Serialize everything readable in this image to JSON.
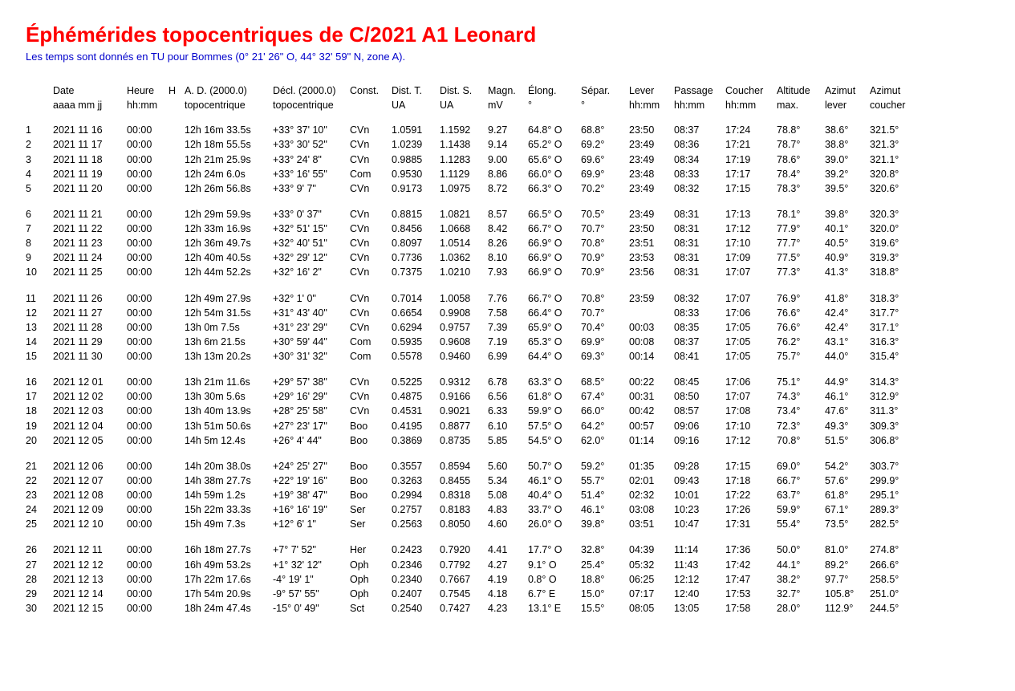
{
  "title": "Éphémérides topocentriques de C/2021 A1 Leonard",
  "subtitle": "Les temps sont donnés en TU pour Bommes (0° 21' 26\" O, 44° 32' 59\" N, zone A).",
  "colors": {
    "title": "#ff0000",
    "subtitle": "#0000cc",
    "text": "#000000",
    "background": "#ffffff"
  },
  "font": {
    "family": "Arial",
    "title_size": 26,
    "body_size": 12.5
  },
  "headers": {
    "line1": [
      "",
      "Date",
      "Heure",
      "H",
      "A. D. (2000.0)",
      "Décl. (2000.0)",
      "Const.",
      "Dist. T.",
      "Dist. S.",
      "Magn.",
      "Élong.",
      "Sépar.",
      "Lever",
      "Passage",
      "Coucher",
      "Altitude",
      "Azimut",
      "Azimut"
    ],
    "line2": [
      "",
      "aaaa mm jj",
      "hh:mm",
      "",
      "topocentrique",
      "topocentrique",
      "",
      "UA",
      "UA",
      "mV",
      "°",
      "°",
      "hh:mm",
      "hh:mm",
      "hh:mm",
      "max.",
      "lever",
      "coucher"
    ]
  },
  "rows": [
    [
      "1",
      "2021 11 16",
      "00:00",
      "",
      "12h 16m 33.5s",
      "+33° 37' 10\"",
      "CVn",
      "1.0591",
      "1.1592",
      "9.27",
      "64.8° O",
      "68.8°",
      "23:50",
      "08:37",
      "17:24",
      "78.8°",
      "38.6°",
      "321.5°"
    ],
    [
      "2",
      "2021 11 17",
      "00:00",
      "",
      "12h 18m 55.5s",
      "+33° 30' 52\"",
      "CVn",
      "1.0239",
      "1.1438",
      "9.14",
      "65.2° O",
      "69.2°",
      "23:49",
      "08:36",
      "17:21",
      "78.7°",
      "38.8°",
      "321.3°"
    ],
    [
      "3",
      "2021 11 18",
      "00:00",
      "",
      "12h 21m 25.9s",
      "+33° 24' 8\"",
      "CVn",
      "0.9885",
      "1.1283",
      "9.00",
      "65.6° O",
      "69.6°",
      "23:49",
      "08:34",
      "17:19",
      "78.6°",
      "39.0°",
      "321.1°"
    ],
    [
      "4",
      "2021 11 19",
      "00:00",
      "",
      "12h 24m 6.0s",
      "+33° 16' 55\"",
      "Com",
      "0.9530",
      "1.1129",
      "8.86",
      "66.0° O",
      "69.9°",
      "23:48",
      "08:33",
      "17:17",
      "78.4°",
      "39.2°",
      "320.8°"
    ],
    [
      "5",
      "2021 11 20",
      "00:00",
      "",
      "12h 26m 56.8s",
      "+33° 9' 7\"",
      "CVn",
      "0.9173",
      "1.0975",
      "8.72",
      "66.3° O",
      "70.2°",
      "23:49",
      "08:32",
      "17:15",
      "78.3°",
      "39.5°",
      "320.6°"
    ],
    "GAP",
    [
      "6",
      "2021 11 21",
      "00:00",
      "",
      "12h 29m 59.9s",
      "+33° 0' 37\"",
      "CVn",
      "0.8815",
      "1.0821",
      "8.57",
      "66.5° O",
      "70.5°",
      "23:49",
      "08:31",
      "17:13",
      "78.1°",
      "39.8°",
      "320.3°"
    ],
    [
      "7",
      "2021 11 22",
      "00:00",
      "",
      "12h 33m 16.9s",
      "+32° 51' 15\"",
      "CVn",
      "0.8456",
      "1.0668",
      "8.42",
      "66.7° O",
      "70.7°",
      "23:50",
      "08:31",
      "17:12",
      "77.9°",
      "40.1°",
      "320.0°"
    ],
    [
      "8",
      "2021 11 23",
      "00:00",
      "",
      "12h 36m 49.7s",
      "+32° 40' 51\"",
      "CVn",
      "0.8097",
      "1.0514",
      "8.26",
      "66.9° O",
      "70.8°",
      "23:51",
      "08:31",
      "17:10",
      "77.7°",
      "40.5°",
      "319.6°"
    ],
    [
      "9",
      "2021 11 24",
      "00:00",
      "",
      "12h 40m 40.5s",
      "+32° 29' 12\"",
      "CVn",
      "0.7736",
      "1.0362",
      "8.10",
      "66.9° O",
      "70.9°",
      "23:53",
      "08:31",
      "17:09",
      "77.5°",
      "40.9°",
      "319.3°"
    ],
    [
      "10",
      "2021 11 25",
      "00:00",
      "",
      "12h 44m 52.2s",
      "+32° 16' 2\"",
      "CVn",
      "0.7375",
      "1.0210",
      "7.93",
      "66.9° O",
      "70.9°",
      "23:56",
      "08:31",
      "17:07",
      "77.3°",
      "41.3°",
      "318.8°"
    ],
    "GAP",
    [
      "11",
      "2021 11 26",
      "00:00",
      "",
      "12h 49m 27.9s",
      "+32° 1' 0\"",
      "CVn",
      "0.7014",
      "1.0058",
      "7.76",
      "66.7° O",
      "70.8°",
      "23:59",
      "08:32",
      "17:07",
      "76.9°",
      "41.8°",
      "318.3°"
    ],
    [
      "12",
      "2021 11 27",
      "00:00",
      "",
      "12h 54m 31.5s",
      "+31° 43' 40\"",
      "CVn",
      "0.6654",
      "0.9908",
      "7.58",
      "66.4° O",
      "70.7°",
      "",
      "08:33",
      "17:06",
      "76.6°",
      "42.4°",
      "317.7°"
    ],
    [
      "13",
      "2021 11 28",
      "00:00",
      "",
      "13h 0m 7.5s",
      "+31° 23' 29\"",
      "CVn",
      "0.6294",
      "0.9757",
      "7.39",
      "65.9° O",
      "70.4°",
      "00:03",
      "08:35",
      "17:05",
      "76.6°",
      "42.4°",
      "317.1°"
    ],
    [
      "14",
      "2021 11 29",
      "00:00",
      "",
      "13h 6m 21.5s",
      "+30° 59' 44\"",
      "Com",
      "0.5935",
      "0.9608",
      "7.19",
      "65.3° O",
      "69.9°",
      "00:08",
      "08:37",
      "17:05",
      "76.2°",
      "43.1°",
      "316.3°"
    ],
    [
      "15",
      "2021 11 30",
      "00:00",
      "",
      "13h 13m 20.2s",
      "+30° 31' 32\"",
      "Com",
      "0.5578",
      "0.9460",
      "6.99",
      "64.4° O",
      "69.3°",
      "00:14",
      "08:41",
      "17:05",
      "75.7°",
      "44.0°",
      "315.4°"
    ],
    "GAP",
    [
      "16",
      "2021 12 01",
      "00:00",
      "",
      "13h 21m 11.6s",
      "+29° 57' 38\"",
      "CVn",
      "0.5225",
      "0.9312",
      "6.78",
      "63.3° O",
      "68.5°",
      "00:22",
      "08:45",
      "17:06",
      "75.1°",
      "44.9°",
      "314.3°"
    ],
    [
      "17",
      "2021 12 02",
      "00:00",
      "",
      "13h 30m 5.6s",
      "+29° 16' 29\"",
      "CVn",
      "0.4875",
      "0.9166",
      "6.56",
      "61.8° O",
      "67.4°",
      "00:31",
      "08:50",
      "17:07",
      "74.3°",
      "46.1°",
      "312.9°"
    ],
    [
      "18",
      "2021 12 03",
      "00:00",
      "",
      "13h 40m 13.9s",
      "+28° 25' 58\"",
      "CVn",
      "0.4531",
      "0.9021",
      "6.33",
      "59.9° O",
      "66.0°",
      "00:42",
      "08:57",
      "17:08",
      "73.4°",
      "47.6°",
      "311.3°"
    ],
    [
      "19",
      "2021 12 04",
      "00:00",
      "",
      "13h 51m 50.6s",
      "+27° 23' 17\"",
      "Boo",
      "0.4195",
      "0.8877",
      "6.10",
      "57.5° O",
      "64.2°",
      "00:57",
      "09:06",
      "17:10",
      "72.3°",
      "49.3°",
      "309.3°"
    ],
    [
      "20",
      "2021 12 05",
      "00:00",
      "",
      "14h 5m 12.4s",
      "+26° 4' 44\"",
      "Boo",
      "0.3869",
      "0.8735",
      "5.85",
      "54.5° O",
      "62.0°",
      "01:14",
      "09:16",
      "17:12",
      "70.8°",
      "51.5°",
      "306.8°"
    ],
    "GAP",
    [
      "21",
      "2021 12 06",
      "00:00",
      "",
      "14h 20m 38.0s",
      "+24° 25' 27\"",
      "Boo",
      "0.3557",
      "0.8594",
      "5.60",
      "50.7° O",
      "59.2°",
      "01:35",
      "09:28",
      "17:15",
      "69.0°",
      "54.2°",
      "303.7°"
    ],
    [
      "22",
      "2021 12 07",
      "00:00",
      "",
      "14h 38m 27.7s",
      "+22° 19' 16\"",
      "Boo",
      "0.3263",
      "0.8455",
      "5.34",
      "46.1° O",
      "55.7°",
      "02:01",
      "09:43",
      "17:18",
      "66.7°",
      "57.6°",
      "299.9°"
    ],
    [
      "23",
      "2021 12 08",
      "00:00",
      "",
      "14h 59m 1.2s",
      "+19° 38' 47\"",
      "Boo",
      "0.2994",
      "0.8318",
      "5.08",
      "40.4° O",
      "51.4°",
      "02:32",
      "10:01",
      "17:22",
      "63.7°",
      "61.8°",
      "295.1°"
    ],
    [
      "24",
      "2021 12 09",
      "00:00",
      "",
      "15h 22m 33.3s",
      "+16° 16' 19\"",
      "Ser",
      "0.2757",
      "0.8183",
      "4.83",
      "33.7° O",
      "46.1°",
      "03:08",
      "10:23",
      "17:26",
      "59.9°",
      "67.1°",
      "289.3°"
    ],
    [
      "25",
      "2021 12 10",
      "00:00",
      "",
      "15h 49m 7.3s",
      "+12° 6' 1\"",
      "Ser",
      "0.2563",
      "0.8050",
      "4.60",
      "26.0° O",
      "39.8°",
      "03:51",
      "10:47",
      "17:31",
      "55.4°",
      "73.5°",
      "282.5°"
    ],
    "GAP",
    [
      "26",
      "2021 12 11",
      "00:00",
      "",
      "16h 18m 27.7s",
      "+7° 7' 52\"",
      "Her",
      "0.2423",
      "0.7920",
      "4.41",
      "17.7° O",
      "32.8°",
      "04:39",
      "11:14",
      "17:36",
      "50.0°",
      "81.0°",
      "274.8°"
    ],
    [
      "27",
      "2021 12 12",
      "00:00",
      "",
      "16h 49m 53.2s",
      "+1° 32' 12\"",
      "Oph",
      "0.2346",
      "0.7792",
      "4.27",
      "9.1° O",
      "25.4°",
      "05:32",
      "11:43",
      "17:42",
      "44.1°",
      "89.2°",
      "266.6°"
    ],
    [
      "28",
      "2021 12 13",
      "00:00",
      "",
      "17h 22m 17.6s",
      "-4° 19' 1\"",
      "Oph",
      "0.2340",
      "0.7667",
      "4.19",
      "0.8° O",
      "18.8°",
      "06:25",
      "12:12",
      "17:47",
      "38.2°",
      "97.7°",
      "258.5°"
    ],
    [
      "29",
      "2021 12 14",
      "00:00",
      "",
      "17h 54m 20.9s",
      "-9° 57' 55\"",
      "Oph",
      "0.2407",
      "0.7545",
      "4.18",
      "6.7° E",
      "15.0°",
      "07:17",
      "12:40",
      "17:53",
      "32.7°",
      "105.8°",
      "251.0°"
    ],
    [
      "30",
      "2021 12 15",
      "00:00",
      "",
      "18h 24m 47.4s",
      "-15° 0' 49\"",
      "Sct",
      "0.2540",
      "0.7427",
      "4.23",
      "13.1° E",
      "15.5°",
      "08:05",
      "13:05",
      "17:58",
      "28.0°",
      "112.9°",
      "244.5°"
    ]
  ]
}
